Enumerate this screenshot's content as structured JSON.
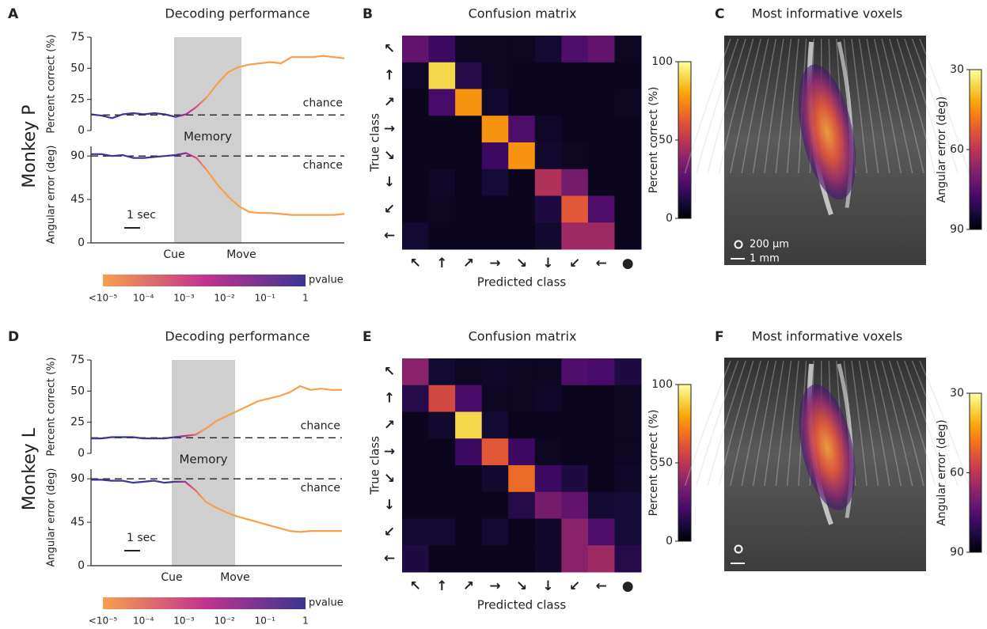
{
  "chart_data": [
    {
      "type": "line",
      "panel": "A",
      "title": "Decoding performance",
      "row_label": "Monkey P",
      "ylabel": "Percent correct (%)",
      "ylim": [
        0,
        75
      ],
      "yticks": [
        0,
        25,
        50,
        75
      ],
      "chance": 12.5,
      "chance_label": "chance",
      "colors": [
        "#3a3592",
        "#c2348f",
        "#f6a04d"
      ],
      "values": [
        13,
        12,
        10,
        13,
        14,
        13,
        14,
        13,
        11,
        13,
        19,
        27,
        38,
        47,
        51,
        53,
        54,
        55,
        54,
        59,
        59,
        59,
        60,
        59,
        58
      ]
    },
    {
      "type": "line",
      "ylabel": "Angular error (deg)",
      "ylim": [
        0,
        100
      ],
      "yticks": [
        0,
        45,
        90
      ],
      "chance": 90,
      "chance_label": "chance",
      "colors": [
        "#3a3592",
        "#c2348f",
        "#f6a04d"
      ],
      "memory_label": "Memory",
      "cue_label": "Cue",
      "move_label": "Move",
      "scale_label": "1 sec",
      "values": [
        92,
        92,
        90,
        91,
        88,
        88,
        89,
        90,
        91,
        93,
        88,
        75,
        60,
        48,
        38,
        32,
        31,
        31,
        30,
        29,
        29,
        29,
        29,
        29,
        30
      ]
    },
    {
      "type": "colorbar",
      "title": "pvalue",
      "colors": [
        "#f6a04d",
        "#c2348f",
        "#3a3592"
      ],
      "ticks": [
        "<10⁻⁵",
        "10⁻⁴",
        "10⁻³",
        "10⁻²",
        "10⁻¹",
        "1"
      ]
    },
    {
      "type": "heatmap",
      "panel": "B",
      "title": "Confusion matrix",
      "xlabel": "Predicted class",
      "ylabel": "True class",
      "x_categories": [
        "↖",
        "↑",
        "↗",
        "→",
        "↘",
        "↓",
        "↙",
        "←",
        "●"
      ],
      "y_categories": [
        "↖",
        "↑",
        "↗",
        "→",
        "↘",
        "↓",
        "↙",
        "←"
      ],
      "colormap": "inferno",
      "clim": [
        0,
        100
      ],
      "cticks": [
        0,
        50,
        100
      ],
      "colorbar_label": "Percent correct (%)",
      "values": [
        [
          25,
          15,
          2,
          2,
          2,
          5,
          20,
          25,
          2
        ],
        [
          3,
          90,
          10,
          2,
          1,
          1,
          1,
          1,
          1
        ],
        [
          1,
          18,
          75,
          4,
          1,
          1,
          1,
          1,
          2
        ],
        [
          1,
          1,
          1,
          75,
          20,
          3,
          1,
          1,
          1
        ],
        [
          1,
          1,
          1,
          15,
          75,
          4,
          2,
          1,
          1
        ],
        [
          1,
          3,
          1,
          6,
          1,
          45,
          30,
          1,
          1
        ],
        [
          1,
          2,
          1,
          1,
          1,
          8,
          60,
          20,
          1
        ],
        [
          5,
          1,
          1,
          1,
          1,
          4,
          40,
          40,
          1
        ]
      ]
    },
    {
      "type": "image",
      "panel": "C",
      "title": "Most informative voxels",
      "colorbar_label": "Angular error (deg)",
      "colormap": "inferno",
      "clim": [
        90,
        30
      ],
      "cticks": [
        30,
        60,
        90
      ],
      "scale_labels": [
        "200 µm",
        "1 mm"
      ]
    },
    {
      "type": "line",
      "panel": "D",
      "title": "Decoding performance",
      "row_label": "Monkey L",
      "ylabel": "Percent correct (%)",
      "ylim": [
        0,
        75
      ],
      "yticks": [
        0,
        25,
        50,
        75
      ],
      "chance": 12.5,
      "chance_label": "chance",
      "colors": [
        "#3a3592",
        "#c2348f",
        "#f6a04d"
      ],
      "values": [
        12,
        12,
        13,
        13,
        13,
        12,
        12,
        12,
        13,
        14,
        15,
        20,
        26,
        30,
        34,
        38,
        42,
        44,
        46,
        49,
        54,
        51,
        52,
        51,
        51
      ]
    },
    {
      "type": "line",
      "ylabel": "Angular error (deg)",
      "ylim": [
        0,
        100
      ],
      "yticks": [
        0,
        45,
        90
      ],
      "chance": 90,
      "chance_label": "chance",
      "colors": [
        "#3a3592",
        "#c2348f",
        "#f6a04d"
      ],
      "memory_label": "Memory",
      "cue_label": "Cue",
      "move_label": "Move",
      "scale_label": "1 sec",
      "values": [
        89,
        89,
        88,
        88,
        86,
        87,
        88,
        86,
        87,
        87,
        78,
        66,
        60,
        55,
        51,
        48,
        45,
        42,
        39,
        36,
        35,
        36,
        36,
        36,
        36
      ]
    },
    {
      "type": "colorbar",
      "title": "pvalue",
      "colors": [
        "#f6a04d",
        "#c2348f",
        "#3a3592"
      ],
      "ticks": [
        "<10⁻⁵",
        "10⁻⁴",
        "10⁻³",
        "10⁻²",
        "10⁻¹",
        "1"
      ]
    },
    {
      "type": "heatmap",
      "panel": "E",
      "title": "Confusion matrix",
      "xlabel": "Predicted class",
      "ylabel": "True class",
      "x_categories": [
        "↖",
        "↑",
        "↗",
        "→",
        "↘",
        "↓",
        "↙",
        "←",
        "●"
      ],
      "y_categories": [
        "↖",
        "↑",
        "↗",
        "→",
        "↘",
        "↓",
        "↙",
        "←"
      ],
      "colormap": "inferno",
      "clim": [
        0,
        100
      ],
      "cticks": [
        0,
        50,
        100
      ],
      "colorbar_label": "Percent correct (%)",
      "values": [
        [
          35,
          5,
          2,
          3,
          2,
          2,
          20,
          18,
          8
        ],
        [
          10,
          55,
          18,
          2,
          2,
          3,
          1,
          1,
          2
        ],
        [
          1,
          4,
          90,
          5,
          1,
          1,
          1,
          1,
          2
        ],
        [
          1,
          1,
          15,
          60,
          15,
          2,
          1,
          1,
          2
        ],
        [
          1,
          1,
          1,
          4,
          65,
          15,
          8,
          1,
          3
        ],
        [
          1,
          1,
          1,
          1,
          10,
          30,
          25,
          5,
          6
        ],
        [
          5,
          5,
          1,
          5,
          1,
          3,
          35,
          20,
          6
        ],
        [
          8,
          1,
          1,
          1,
          1,
          3,
          35,
          40,
          10
        ]
      ]
    },
    {
      "type": "image",
      "panel": "F",
      "title": "Most informative voxels",
      "colorbar_label": "Angular error (deg)",
      "colormap": "inferno",
      "clim": [
        90,
        30
      ],
      "cticks": [
        30,
        60,
        90
      ]
    }
  ]
}
